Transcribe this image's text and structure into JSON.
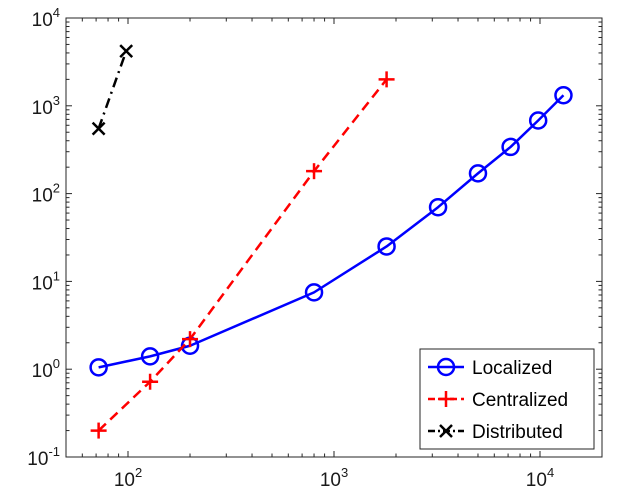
{
  "chart_data": {
    "type": "line",
    "xscale": "log",
    "yscale": "log",
    "xlim": [
      50,
      20000
    ],
    "ylim": [
      0.1,
      10000
    ],
    "grid": false,
    "legend_position": "bottom-right",
    "x_ticks": [
      {
        "value": 100,
        "base": "10",
        "exp": "2"
      },
      {
        "value": 1000,
        "base": "10",
        "exp": "3"
      },
      {
        "value": 10000,
        "base": "10",
        "exp": "4"
      }
    ],
    "y_ticks": [
      {
        "value": 0.1,
        "base": "10",
        "exp": "-1"
      },
      {
        "value": 1,
        "base": "10",
        "exp": "0"
      },
      {
        "value": 10,
        "base": "10",
        "exp": "1"
      },
      {
        "value": 100,
        "base": "10",
        "exp": "2"
      },
      {
        "value": 1000,
        "base": "10",
        "exp": "3"
      },
      {
        "value": 10000,
        "base": "10",
        "exp": "4"
      }
    ],
    "series": [
      {
        "name": "Localized",
        "color": "#0000ff",
        "dash": "solid",
        "marker": "circle",
        "x": [
          72,
          128,
          200,
          800,
          1800,
          3200,
          5000,
          7200,
          9800,
          13000
        ],
        "y": [
          1.05,
          1.4,
          1.85,
          7.5,
          25,
          70,
          170,
          340,
          680,
          1320
        ]
      },
      {
        "name": "Centralized",
        "color": "#ff0000",
        "dash": "dashed",
        "marker": "plus",
        "x": [
          72,
          128,
          200,
          800,
          1800
        ],
        "y": [
          0.2,
          0.72,
          2.2,
          180,
          2000
        ]
      },
      {
        "name": "Distributed",
        "color": "#000000",
        "dash": "dashdot",
        "marker": "x",
        "x": [
          72,
          98
        ],
        "y": [
          550,
          4200
        ]
      }
    ]
  }
}
